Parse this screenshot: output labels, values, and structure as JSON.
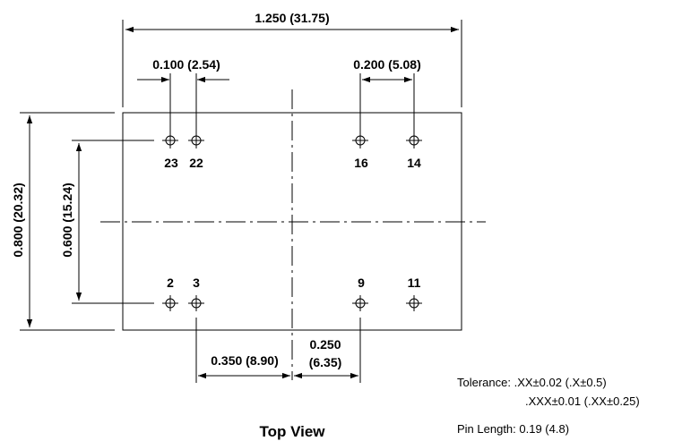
{
  "dimensions": {
    "overall_width": "1.250 (31.75)",
    "pin_pitch": "0.100 (2.54)",
    "pin_spacing_right": "0.200 (5.08)",
    "overall_height": "0.800 (20.32)",
    "row_spacing": "0.600 (15.24)",
    "offset_left": "0.350 (8.90)",
    "offset_right_line1": "0.250",
    "offset_right_line2": "(6.35)"
  },
  "pins": {
    "top": [
      "23",
      "22",
      "16",
      "14"
    ],
    "bottom": [
      "2",
      "3",
      "9",
      "11"
    ]
  },
  "view_label": "Top View",
  "notes": {
    "tolerance_line1": "Tolerance: .XX±0.02 (.X±0.5)",
    "tolerance_line2": ".XXX±0.01 (.XX±0.25)",
    "pin_length": "Pin Length: 0.19 (4.8)"
  }
}
